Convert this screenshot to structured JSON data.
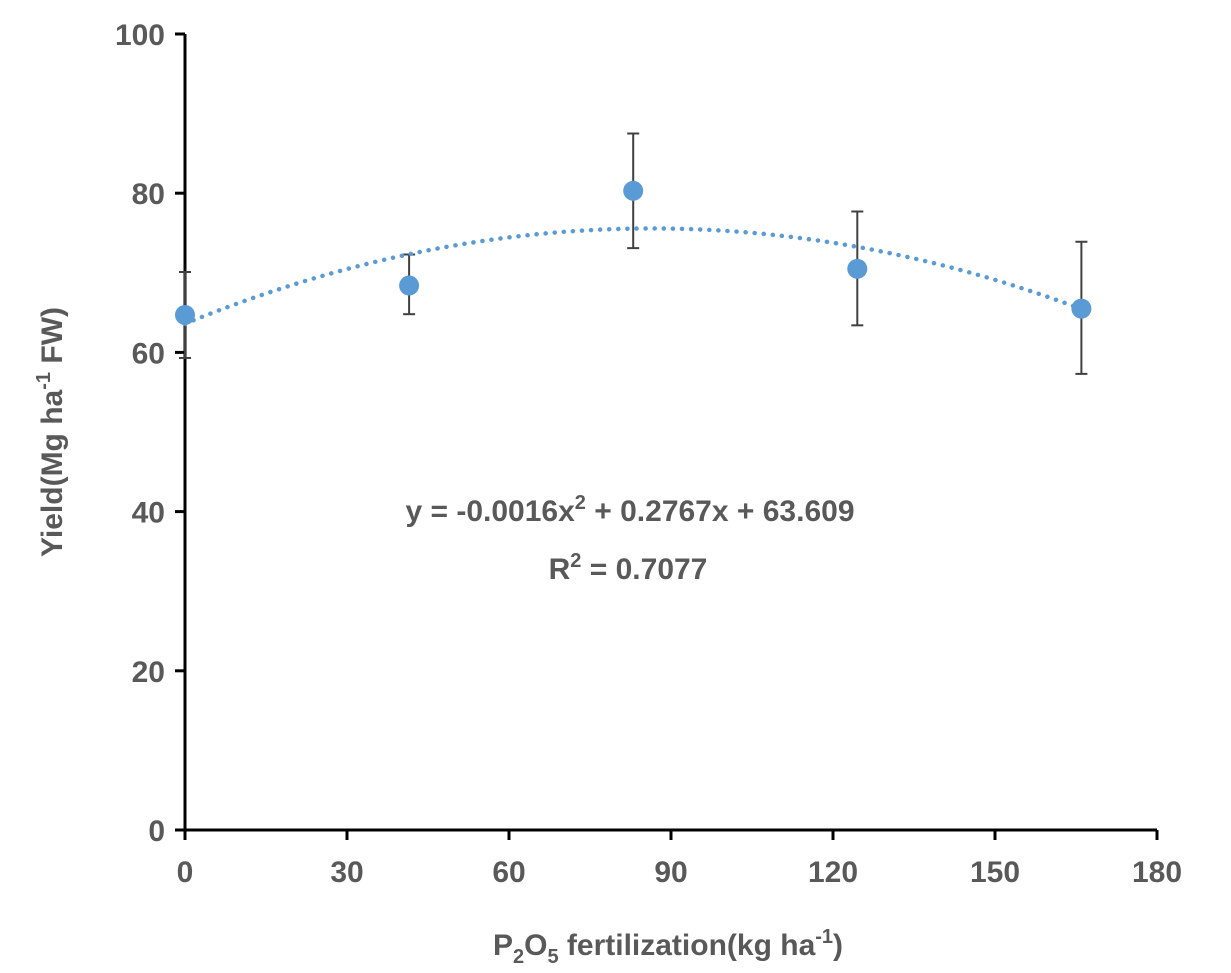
{
  "chart_data": {
    "type": "scatter",
    "x_axis": {
      "label_main": "P",
      "label_sub1": "2",
      "label_mid": "O",
      "label_sub2": "5",
      "label_rest": " fertilization(kg ha",
      "label_sup": "-1",
      "label_end": ")",
      "min": 0,
      "max": 180,
      "ticks": [
        0,
        30,
        60,
        90,
        120,
        150,
        180
      ]
    },
    "y_axis": {
      "label_main": "Yield(Mg ha",
      "label_sup": "-1",
      "label_end": " FW)",
      "min": 0,
      "max": 100,
      "ticks": [
        0,
        20,
        40,
        60,
        80,
        100
      ]
    },
    "series": [
      {
        "points": [
          {
            "x": 0,
            "y": 64.7,
            "err_low": 59.3,
            "err_high": 70.1
          },
          {
            "x": 41.5,
            "y": 68.4,
            "err_low": 64.8,
            "err_high": 72.3
          },
          {
            "x": 83,
            "y": 80.3,
            "err_low": 73.1,
            "err_high": 87.5
          },
          {
            "x": 124.5,
            "y": 70.5,
            "err_low": 63.4,
            "err_high": 77.7
          },
          {
            "x": 166,
            "y": 65.5,
            "err_low": 57.3,
            "err_high": 73.9
          }
        ]
      }
    ],
    "trendline": {
      "type": "polynomial",
      "a": -0.0016,
      "b": 0.2767,
      "c": 63.609,
      "x_range": [
        0,
        166
      ]
    },
    "equation": {
      "line1_a": "y = -0.0016x",
      "line1_sup": "2",
      "line1_b": " + 0.2767x + 63.609",
      "line2_a": "R",
      "line2_sup": "2",
      "line2_b": " = 0.7077"
    },
    "colors": {
      "marker": "#5b9bd5",
      "trendline": "#5b9bd5",
      "error_bar": "#404040",
      "text": "#595959",
      "axis": "#000000"
    },
    "grid": false,
    "legend": "none"
  }
}
